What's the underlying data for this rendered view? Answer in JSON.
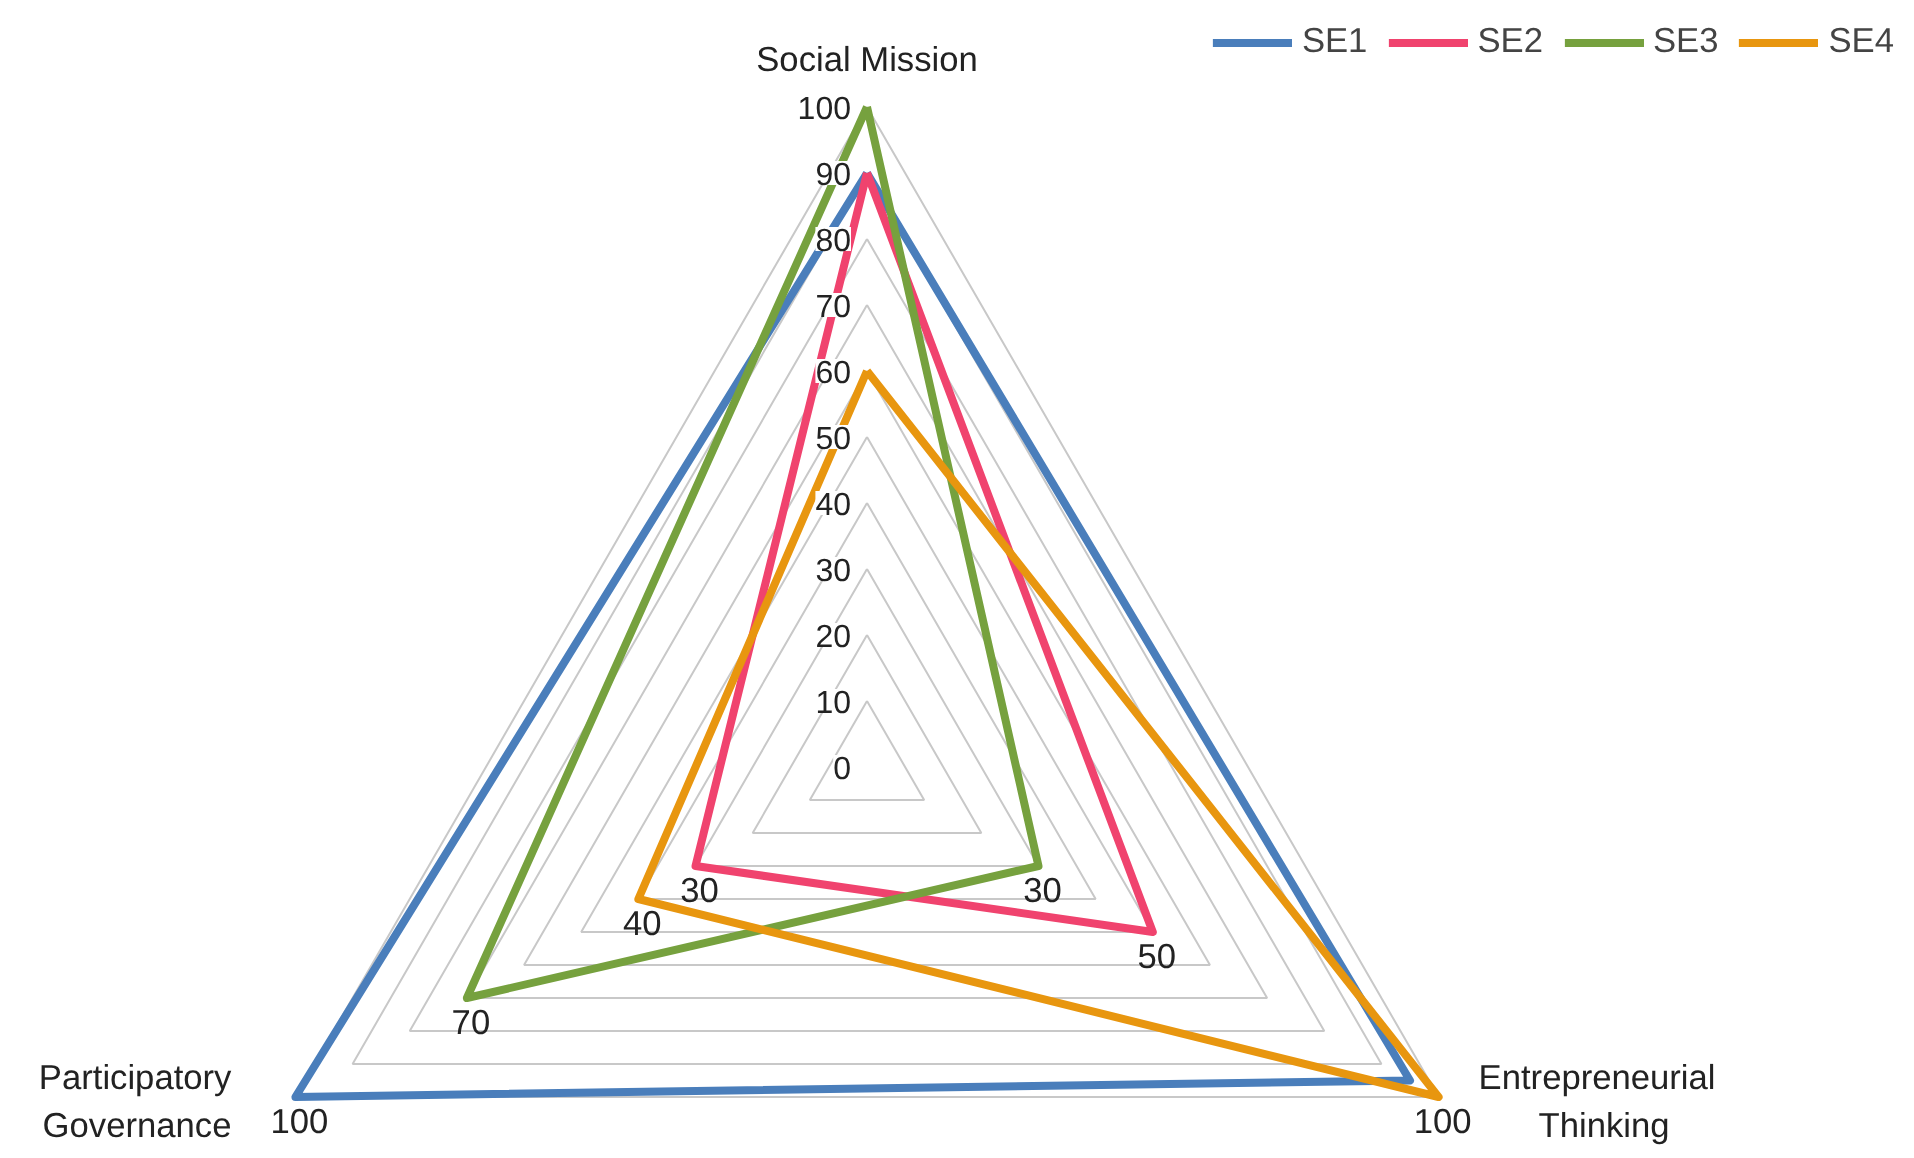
{
  "chart_data": {
    "type": "radar",
    "categories": [
      "Social Mission",
      "Entrepreneurial Thinking",
      "Participatory Governance"
    ],
    "series": [
      {
        "name": "SE1",
        "color": "#4a7ebb",
        "values": [
          90,
          95,
          100
        ],
        "value_labels": [
          null,
          null,
          "100"
        ]
      },
      {
        "name": "SE2",
        "color": "#f0436e",
        "values": [
          90,
          50,
          30
        ],
        "value_labels": [
          null,
          "50",
          "30"
        ]
      },
      {
        "name": "SE3",
        "color": "#76a13e",
        "values": [
          100,
          30,
          70
        ],
        "value_labels": [
          null,
          "30",
          "70"
        ]
      },
      {
        "name": "SE4",
        "color": "#e8960f",
        "values": [
          60,
          100,
          40
        ],
        "value_labels": [
          null,
          "100",
          "40"
        ]
      }
    ],
    "ylim": [
      0,
      100
    ],
    "yticks": [
      0,
      10,
      20,
      30,
      40,
      50,
      60,
      70,
      80,
      90,
      100
    ],
    "grid": true,
    "legend": "top right",
    "marker": "none",
    "line_style": "solid"
  }
}
